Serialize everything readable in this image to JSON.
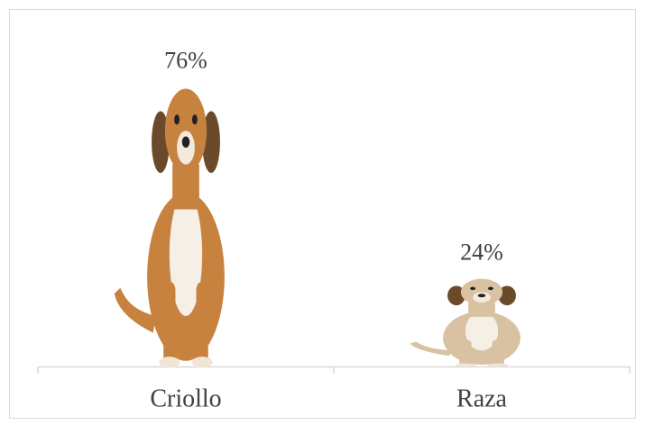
{
  "chart_data": {
    "type": "pictograph",
    "categories": [
      "Criollo",
      "Raza"
    ],
    "values": [
      76,
      24
    ],
    "value_labels": [
      "76%",
      "24%"
    ],
    "colors": [
      "#c8823f",
      "#d8c2a2"
    ]
  }
}
